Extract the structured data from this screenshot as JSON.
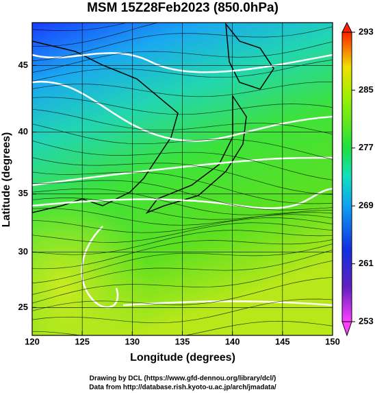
{
  "chart_data": {
    "type": "map",
    "title": "MSM 15Z28Feb2023 (850.0hPa)",
    "xlabel": "Longitude (degrees)",
    "ylabel": "Latitude  (degrees)",
    "projection": "mercator",
    "xlim": [
      120,
      150
    ],
    "xticks": [
      120,
      125,
      130,
      135,
      140,
      145,
      150
    ],
    "ylim": [
      22.4,
      48
    ],
    "yticks": [
      25,
      30,
      35,
      40,
      45
    ],
    "colorbar": {
      "lim": [
        253,
        293
      ],
      "ticks": [
        253,
        261,
        269,
        277,
        285,
        293
      ]
    }
  },
  "footer": [
    "Drawing by DCL (https://www.gfd-dennou.org/library/dcl/)",
    "Data from http://database.rish.kyoto-u.ac.jp/arch/jmadata/"
  ]
}
